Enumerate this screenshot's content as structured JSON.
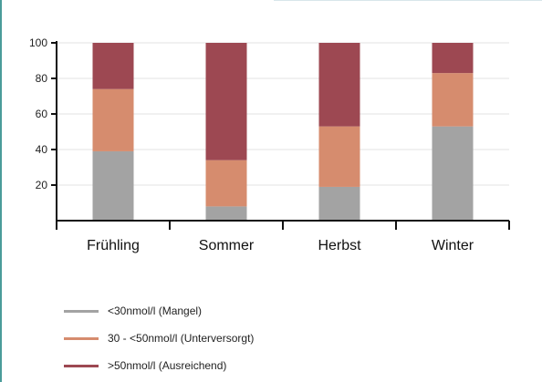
{
  "chart_data": {
    "type": "bar",
    "stacked": true,
    "categories": [
      "Frühling",
      "Sommer",
      "Herbst",
      "Winter"
    ],
    "series": [
      {
        "name": "<30nmol/l (Mangel)",
        "color": "#a3a3a3",
        "values": [
          39,
          8,
          19,
          53
        ]
      },
      {
        "name": "30 - <50nmol/l (Unterversorgt)",
        "color": "#d68c6e",
        "values": [
          35,
          26,
          34,
          30
        ]
      },
      {
        "name": ">50nmol/l (Ausreichend)",
        "color": "#9d4852",
        "values": [
          26,
          66,
          47,
          17
        ]
      }
    ],
    "ylim": [
      0,
      100
    ],
    "yticks": [
      20,
      40,
      60,
      80,
      100
    ],
    "grid": true,
    "legend_position": "bottom-left"
  }
}
